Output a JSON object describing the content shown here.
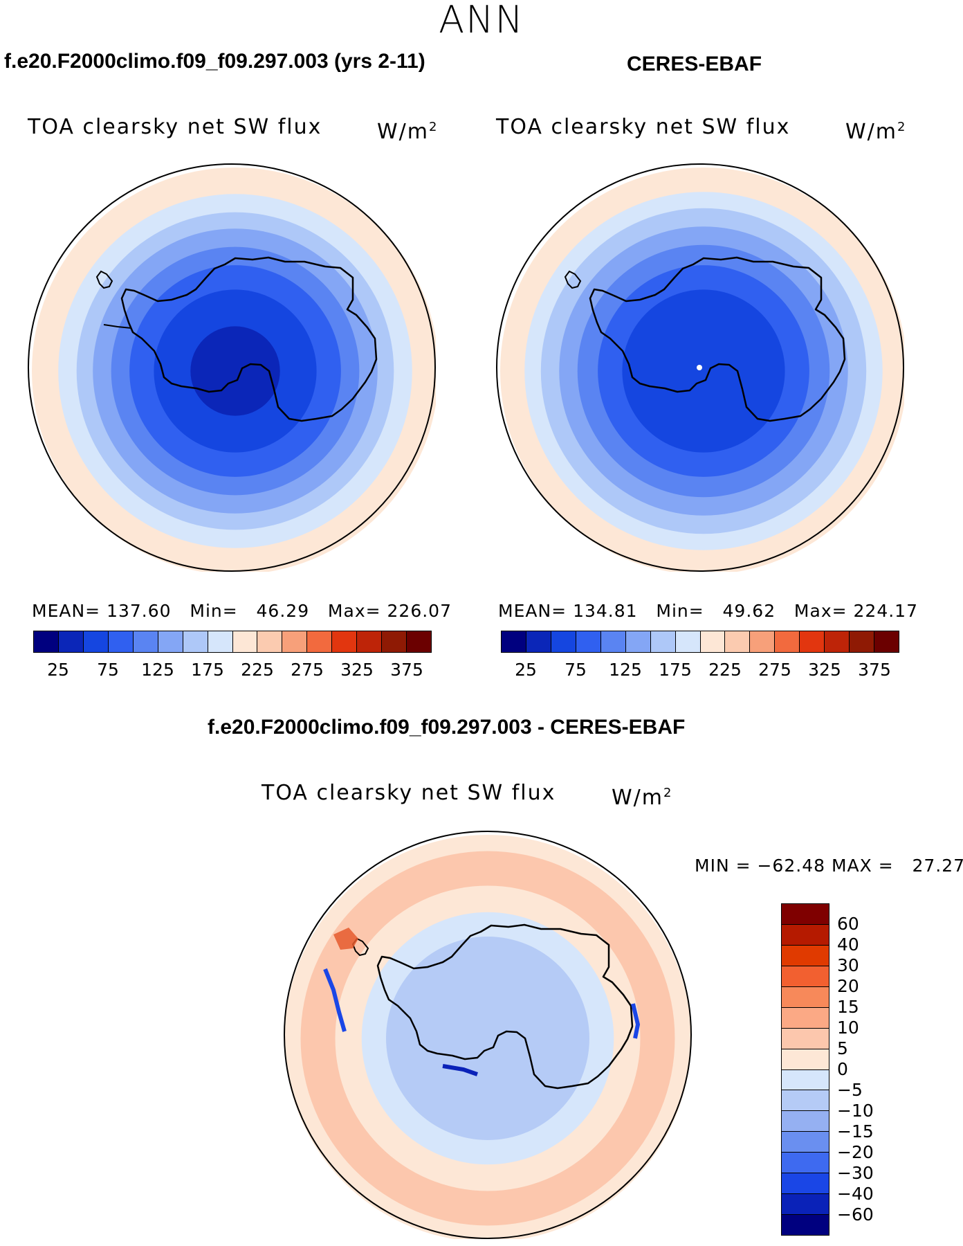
{
  "season": "ANN",
  "panels": [
    {
      "case": "f.e20.F2000climo.f09_f09.297.003 (yrs 2-11)",
      "var": "TOA clearsky net SW flux",
      "units": "W/m",
      "units_exp": "2",
      "stats": "MEAN= 137.60   Min=   46.29   Max= 226.07"
    },
    {
      "case": "CERES-EBAF",
      "var": "TOA clearsky net SW flux",
      "units": "W/m",
      "units_exp": "2",
      "stats": "MEAN= 134.81   Min=   49.62   Max= 224.17"
    },
    {
      "case": "f.e20.F2000climo.f09_f09.297.003 - CERES-EBAF",
      "var": "TOA clearsky net SW flux",
      "units": "W/m",
      "units_exp": "2",
      "stats": "MIN = −62.48 MAX =   27.27"
    }
  ],
  "chart_data": [
    {
      "type": "heatmap",
      "projection": "south polar stereographic",
      "title": "f.e20.F2000climo.f09_f09.297.003 (yrs 2-11)",
      "variable": "TOA clearsky net SW flux",
      "units": "W/m2",
      "mean": 137.6,
      "min": 46.29,
      "max": 226.07,
      "contour_levels": [
        25,
        50,
        75,
        100,
        125,
        150,
        175,
        200,
        225,
        250,
        275,
        300,
        325,
        350,
        375
      ],
      "colorbar_ticks": [
        "25",
        "75",
        "125",
        "175",
        "225",
        "275",
        "325",
        "375"
      ],
      "colors": [
        "#00007f",
        "#0b26b8",
        "#1546e0",
        "#3060f0",
        "#5a84f2",
        "#84a6f5",
        "#aec8f8",
        "#d6e6fb",
        "#fde7d6",
        "#fbcbb0",
        "#f7a07a",
        "#f26a3e",
        "#e2360f",
        "#be2408",
        "#8f1a04",
        "#6b0000"
      ],
      "field_rings": [
        {
          "value": 215,
          "color": "#fde7d6"
        },
        {
          "value": 185,
          "color": "#d6e6fb"
        },
        {
          "value": 165,
          "color": "#aec8f8"
        },
        {
          "value": 145,
          "color": "#84a6f5"
        },
        {
          "value": 120,
          "color": "#5a84f2"
        },
        {
          "value": 90,
          "color": "#3060f0"
        },
        {
          "value": 60,
          "color": "#1546e0"
        },
        {
          "value": 45,
          "color": "#0b26b8"
        }
      ]
    },
    {
      "type": "heatmap",
      "projection": "south polar stereographic",
      "title": "CERES-EBAF",
      "variable": "TOA clearsky net SW flux",
      "units": "W/m2",
      "mean": 134.81,
      "min": 49.62,
      "max": 224.17,
      "contour_levels": [
        25,
        50,
        75,
        100,
        125,
        150,
        175,
        200,
        225,
        250,
        275,
        300,
        325,
        350,
        375
      ],
      "colorbar_ticks": [
        "25",
        "75",
        "125",
        "175",
        "225",
        "275",
        "325",
        "375"
      ],
      "colors": [
        "#00007f",
        "#0b26b8",
        "#1546e0",
        "#3060f0",
        "#5a84f2",
        "#84a6f5",
        "#aec8f8",
        "#d6e6fb",
        "#fde7d6",
        "#fbcbb0",
        "#f7a07a",
        "#f26a3e",
        "#e2360f",
        "#be2408",
        "#8f1a04",
        "#6b0000"
      ],
      "field_rings": [
        {
          "value": 215,
          "color": "#fde7d6"
        },
        {
          "value": 185,
          "color": "#d6e6fb"
        },
        {
          "value": 160,
          "color": "#aec8f8"
        },
        {
          "value": 140,
          "color": "#84a6f5"
        },
        {
          "value": 115,
          "color": "#5a84f2"
        },
        {
          "value": 80,
          "color": "#3060f0"
        },
        {
          "value": 60,
          "color": "#1546e0"
        }
      ]
    },
    {
      "type": "heatmap",
      "projection": "south polar stereographic",
      "title": "f.e20.F2000climo.f09_f09.297.003 - CERES-EBAF",
      "variable": "TOA clearsky net SW flux",
      "units": "W/m2",
      "min": -62.48,
      "max": 27.27,
      "contour_levels": [
        -60,
        -40,
        -30,
        -20,
        -15,
        -10,
        -5,
        0,
        5,
        10,
        15,
        20,
        30,
        40,
        60
      ],
      "colorbar_labels": [
        "60",
        "40",
        "30",
        "20",
        "15",
        "10",
        "5",
        "0",
        "−5",
        "−10",
        "−15",
        "−20",
        "−30",
        "−40",
        "−60"
      ],
      "colors": [
        "#7f0000",
        "#b51a00",
        "#e03a00",
        "#f26030",
        "#f7895a",
        "#fba985",
        "#fcc7ad",
        "#fde7d6",
        "#d6e6fb",
        "#b5cbf6",
        "#95b0f2",
        "#6a8ff0",
        "#3e6af0",
        "#1a46e6",
        "#0a22b8",
        "#00007f"
      ],
      "field_rings": [
        {
          "value": 5,
          "color": "#fde7d6"
        },
        {
          "value": 8,
          "color": "#fcc7ad"
        },
        {
          "value": 3,
          "color": "#fde7d6"
        },
        {
          "value": -3,
          "color": "#d6e6fb"
        },
        {
          "value": -8,
          "color": "#b5cbf6"
        }
      ]
    }
  ]
}
